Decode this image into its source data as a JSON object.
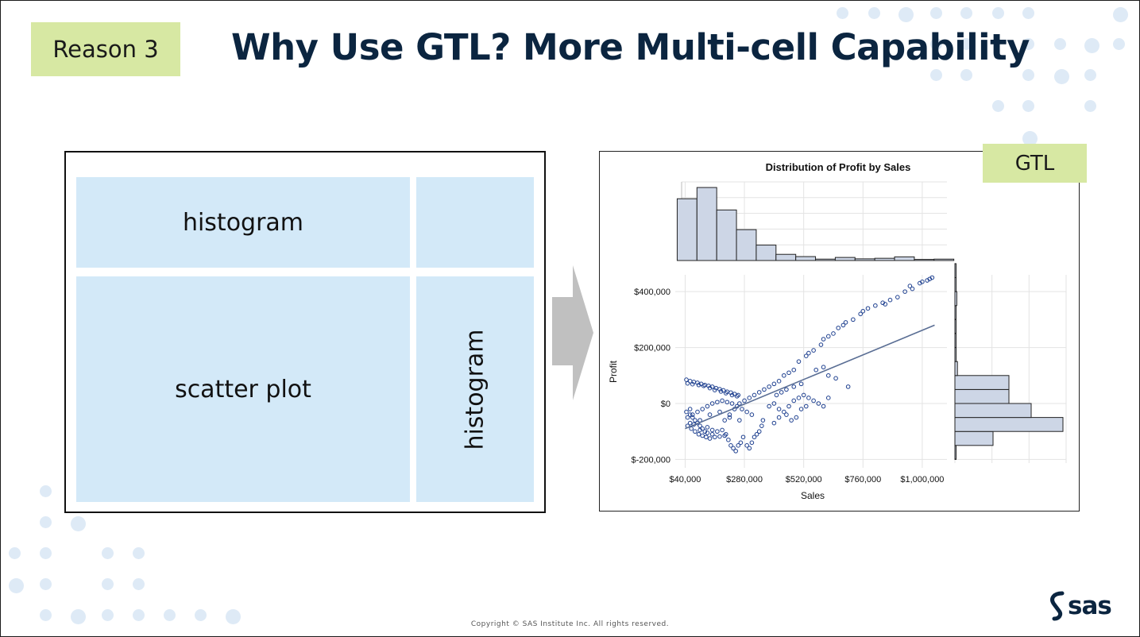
{
  "slide": {
    "tag": "Reason 3",
    "title": "Why Use GTL? More Multi-cell Capability",
    "copyright": "Copyright © SAS Institute Inc. All rights reserved.",
    "logo_text": "sas",
    "colors": {
      "title": "#0b2540",
      "tag_bg": "#d7e8a3",
      "cell_bg": "#d3e9f8",
      "dots": "#deeaf6",
      "arrow": "#c0c0c0"
    }
  },
  "layout_diagram": {
    "top_cell_label": "histogram",
    "corner_cell_label": "",
    "main_cell_label": "scatter plot",
    "side_cell_label": "histogram"
  },
  "gtl_tag": "GTL",
  "chart_data": {
    "type": "scatter",
    "title": "Distribution of Profit by Sales",
    "xlabel": "Sales",
    "ylabel": "Profit",
    "xlim": [
      0,
      1100000
    ],
    "ylim": [
      -230000,
      460000
    ],
    "x_ticks": [
      {
        "value": 40000,
        "label": "$40,000"
      },
      {
        "value": 280000,
        "label": "$280,000"
      },
      {
        "value": 520000,
        "label": "$520,000"
      },
      {
        "value": 760000,
        "label": "$760,000"
      },
      {
        "value": 1000000,
        "label": "$1,000,000"
      }
    ],
    "y_ticks": [
      {
        "value": 400000,
        "label": "$400,000"
      },
      {
        "value": 200000,
        "label": "$200,000"
      },
      {
        "value": 0,
        "label": "$0"
      },
      {
        "value": -200000,
        "label": "$-200,000"
      }
    ],
    "fit_line": {
      "x": [
        40000,
        1050000
      ],
      "y": [
        -90000,
        280000
      ]
    },
    "sales_histogram": {
      "bin_width": 80000,
      "bin_start": 40000,
      "percent": [
        22,
        26,
        18,
        11,
        5.5,
        2.2,
        1.4,
        0.5,
        1.1,
        0.6,
        0.8,
        1.3,
        0.4,
        0.5
      ],
      "ymax": 28
    },
    "profit_histogram": {
      "bin_width": 50000,
      "bin_start": -200000,
      "percent": [
        0.2,
        12,
        34,
        24,
        17,
        17,
        0.8,
        0.4,
        0.3,
        0.2,
        0.3,
        0.6,
        0.4,
        0.3
      ],
      "xmax": 35
    },
    "series": [
      {
        "name": "Profit vs Sales",
        "points": [
          [
            45000,
            85000
          ],
          [
            60000,
            80000
          ],
          [
            75000,
            77000
          ],
          [
            90000,
            74000
          ],
          [
            105000,
            70000
          ],
          [
            120000,
            66000
          ],
          [
            135000,
            63000
          ],
          [
            150000,
            60000
          ],
          [
            165000,
            55000
          ],
          [
            180000,
            51000
          ],
          [
            195000,
            47000
          ],
          [
            210000,
            42000
          ],
          [
            225000,
            39000
          ],
          [
            240000,
            34000
          ],
          [
            255000,
            30000
          ],
          [
            50000,
            72000
          ],
          [
            70000,
            69000
          ],
          [
            95000,
            66000
          ],
          [
            115000,
            63000
          ],
          [
            140000,
            55000
          ],
          [
            160000,
            48000
          ],
          [
            185000,
            43000
          ],
          [
            205000,
            37000
          ],
          [
            230000,
            30000
          ],
          [
            250000,
            26000
          ],
          [
            45000,
            -30000
          ],
          [
            60000,
            -40000
          ],
          [
            70000,
            -50000
          ],
          [
            80000,
            -60000
          ],
          [
            90000,
            -70000
          ],
          [
            100000,
            -80000
          ],
          [
            110000,
            -90000
          ],
          [
            120000,
            -100000
          ],
          [
            130000,
            -105000
          ],
          [
            150000,
            -110000
          ],
          [
            170000,
            -100000
          ],
          [
            190000,
            -95000
          ],
          [
            205000,
            -110000
          ],
          [
            215000,
            -130000
          ],
          [
            225000,
            -150000
          ],
          [
            235000,
            -160000
          ],
          [
            245000,
            -170000
          ],
          [
            255000,
            -150000
          ],
          [
            265000,
            -140000
          ],
          [
            275000,
            -120000
          ],
          [
            290000,
            -150000
          ],
          [
            300000,
            -160000
          ],
          [
            310000,
            -140000
          ],
          [
            320000,
            -120000
          ],
          [
            330000,
            -110000
          ],
          [
            340000,
            -100000
          ],
          [
            350000,
            -80000
          ],
          [
            355000,
            -60000
          ],
          [
            50000,
            -80000
          ],
          [
            65000,
            -90000
          ],
          [
            80000,
            -100000
          ],
          [
            95000,
            -110000
          ],
          [
            110000,
            -115000
          ],
          [
            125000,
            -120000
          ],
          [
            140000,
            -125000
          ],
          [
            160000,
            -120000
          ],
          [
            180000,
            -118000
          ],
          [
            200000,
            -115000
          ],
          [
            60000,
            -70000
          ],
          [
            75000,
            -75000
          ],
          [
            100000,
            -95000
          ],
          [
            130000,
            -85000
          ],
          [
            150000,
            -95000
          ],
          [
            50000,
            -50000
          ],
          [
            70000,
            -40000
          ],
          [
            90000,
            -30000
          ],
          [
            110000,
            -20000
          ],
          [
            130000,
            -10000
          ],
          [
            150000,
            0
          ],
          [
            170000,
            5000
          ],
          [
            190000,
            10000
          ],
          [
            210000,
            5000
          ],
          [
            230000,
            0
          ],
          [
            250000,
            -10000
          ],
          [
            270000,
            -20000
          ],
          [
            290000,
            -30000
          ],
          [
            310000,
            -40000
          ],
          [
            60000,
            -20000
          ],
          [
            100000,
            -60000
          ],
          [
            140000,
            -40000
          ],
          [
            180000,
            -30000
          ],
          [
            220000,
            -50000
          ],
          [
            260000,
            -60000
          ],
          [
            200000,
            -60000
          ],
          [
            220000,
            -40000
          ],
          [
            240000,
            -20000
          ],
          [
            260000,
            0
          ],
          [
            280000,
            10000
          ],
          [
            300000,
            20000
          ],
          [
            320000,
            30000
          ],
          [
            340000,
            40000
          ],
          [
            360000,
            50000
          ],
          [
            380000,
            60000
          ],
          [
            400000,
            70000
          ],
          [
            420000,
            80000
          ],
          [
            440000,
            100000
          ],
          [
            460000,
            110000
          ],
          [
            480000,
            120000
          ],
          [
            380000,
            -10000
          ],
          [
            400000,
            0
          ],
          [
            420000,
            -20000
          ],
          [
            440000,
            -30000
          ],
          [
            460000,
            -10000
          ],
          [
            480000,
            10000
          ],
          [
            500000,
            20000
          ],
          [
            520000,
            30000
          ],
          [
            540000,
            20000
          ],
          [
            560000,
            10000
          ],
          [
            580000,
            0
          ],
          [
            600000,
            -10000
          ],
          [
            620000,
            20000
          ],
          [
            400000,
            -70000
          ],
          [
            420000,
            -50000
          ],
          [
            450000,
            -40000
          ],
          [
            470000,
            -60000
          ],
          [
            490000,
            -50000
          ],
          [
            510000,
            -20000
          ],
          [
            530000,
            -10000
          ],
          [
            500000,
            150000
          ],
          [
            530000,
            170000
          ],
          [
            560000,
            190000
          ],
          [
            590000,
            210000
          ],
          [
            620000,
            240000
          ],
          [
            640000,
            250000
          ],
          [
            660000,
            270000
          ],
          [
            690000,
            290000
          ],
          [
            720000,
            300000
          ],
          [
            750000,
            320000
          ],
          [
            780000,
            340000
          ],
          [
            810000,
            350000
          ],
          [
            840000,
            360000
          ],
          [
            870000,
            370000
          ],
          [
            900000,
            380000
          ],
          [
            930000,
            400000
          ],
          [
            960000,
            410000
          ],
          [
            990000,
            430000
          ],
          [
            1020000,
            440000
          ],
          [
            1040000,
            450000
          ],
          [
            540000,
            180000
          ],
          [
            600000,
            230000
          ],
          [
            680000,
            280000
          ],
          [
            760000,
            330000
          ],
          [
            850000,
            355000
          ],
          [
            950000,
            420000
          ],
          [
            1000000,
            435000
          ],
          [
            1030000,
            445000
          ],
          [
            570000,
            120000
          ],
          [
            600000,
            130000
          ],
          [
            620000,
            100000
          ],
          [
            650000,
            90000
          ],
          [
            700000,
            60000
          ],
          [
            480000,
            60000
          ],
          [
            510000,
            70000
          ],
          [
            450000,
            50000
          ],
          [
            430000,
            40000
          ],
          [
            410000,
            30000
          ]
        ]
      }
    ]
  }
}
